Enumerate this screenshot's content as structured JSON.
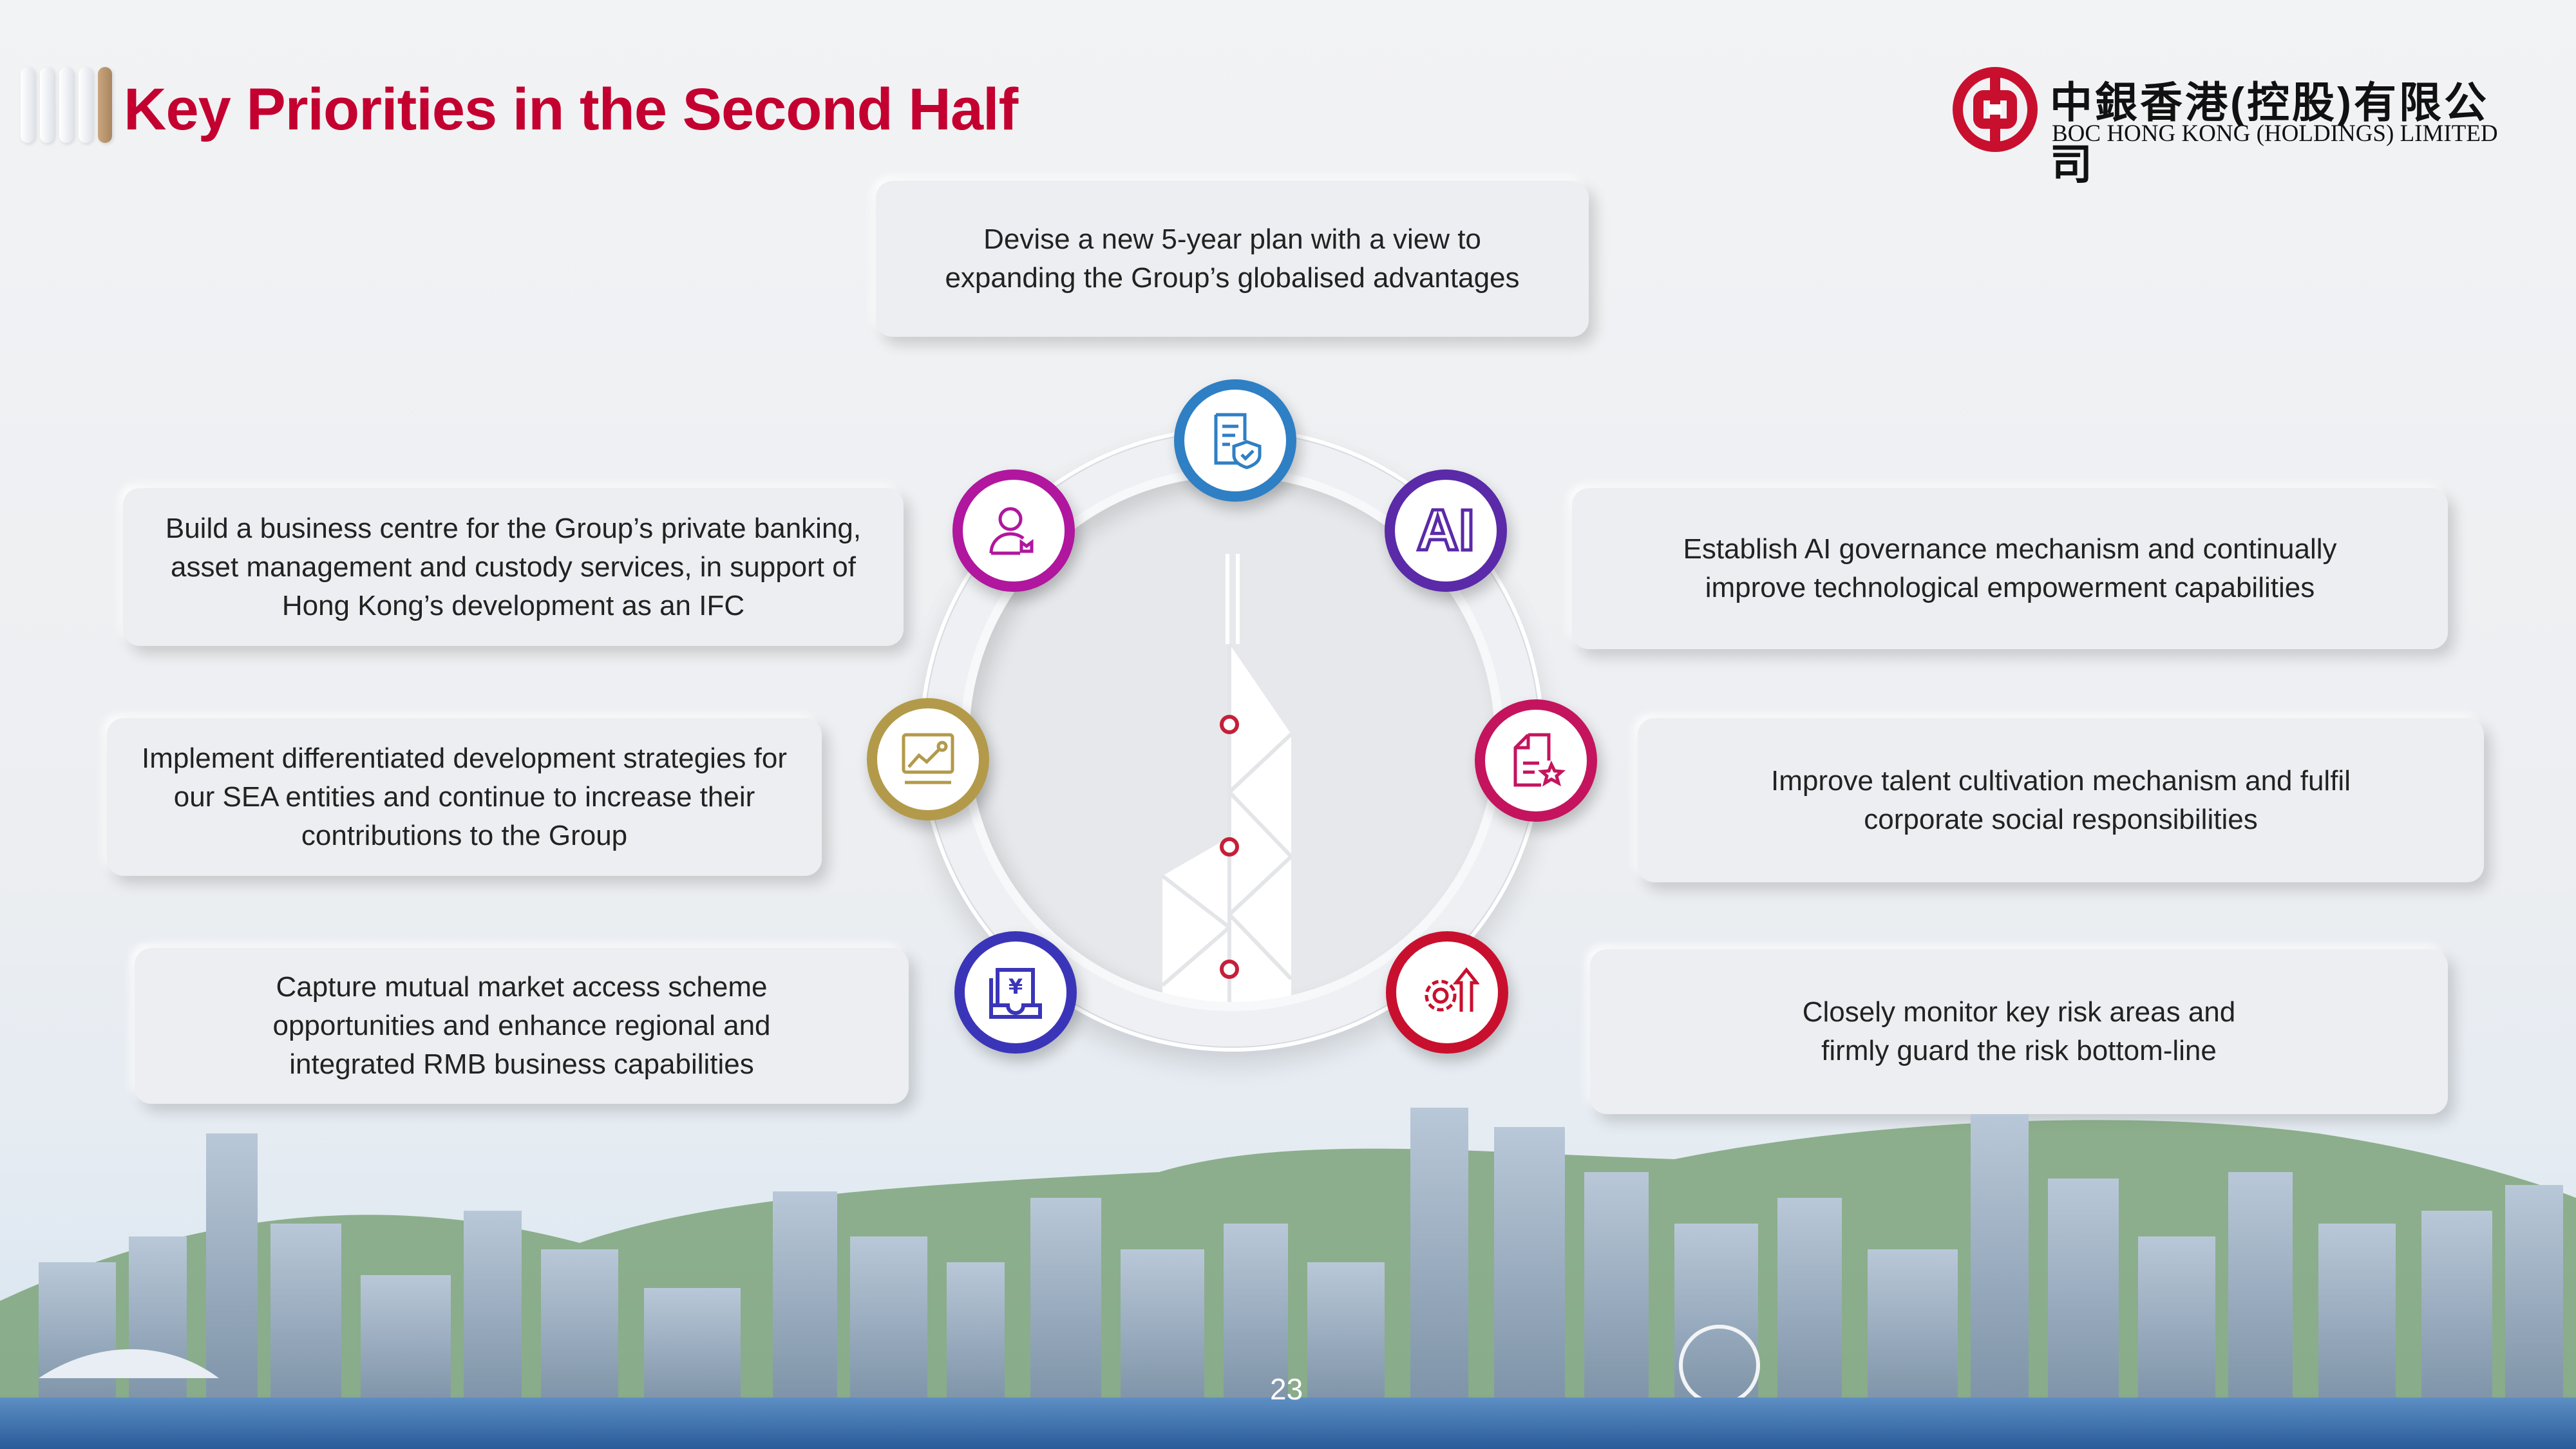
{
  "header": {
    "title": "Key Priorities in the Second Half",
    "logo": {
      "chinese_name": "中銀香港(控股)有限公司",
      "english_name": "BOC HONG KONG (HOLDINGS) LIMITED",
      "color": "#c8102e"
    }
  },
  "priorities": [
    {
      "text": "Devise a new 5-year plan with a view to expanding the Group’s globalised advantages",
      "icon": "document-shield-icon",
      "color": "#2f7fc4"
    },
    {
      "text": "Build a business centre for the Group’s private banking, asset management and custody services, in support of Hong Kong’s development as an IFC",
      "icon": "user-wallet-icon",
      "color": "#b0169e"
    },
    {
      "text": "Establish AI governance mechanism and continually improve technological empowerment capabilities",
      "icon": "ai-icon",
      "color": "#5a2aa8"
    },
    {
      "text": "Implement differentiated development strategies for our SEA entities and continue to increase their contributions to the Group",
      "icon": "growth-chart-icon",
      "color": "#b39a4a"
    },
    {
      "text": "Improve talent cultivation mechanism and fulfil corporate social responsibilities",
      "icon": "document-star-icon",
      "color": "#c4145e"
    },
    {
      "text": "Capture mutual market access scheme opportunities and enhance regional and integrated RMB business capabilities",
      "icon": "rmb-tray-icon",
      "color": "#3a35b8"
    },
    {
      "text": "Closely monitor key risk areas and firmly guard the risk bottom-line",
      "icon": "gear-arrow-icon",
      "color": "#c8102e"
    }
  ],
  "icon_ai_label": "AI",
  "icon_rmb_label": "¥",
  "page_number": "23"
}
